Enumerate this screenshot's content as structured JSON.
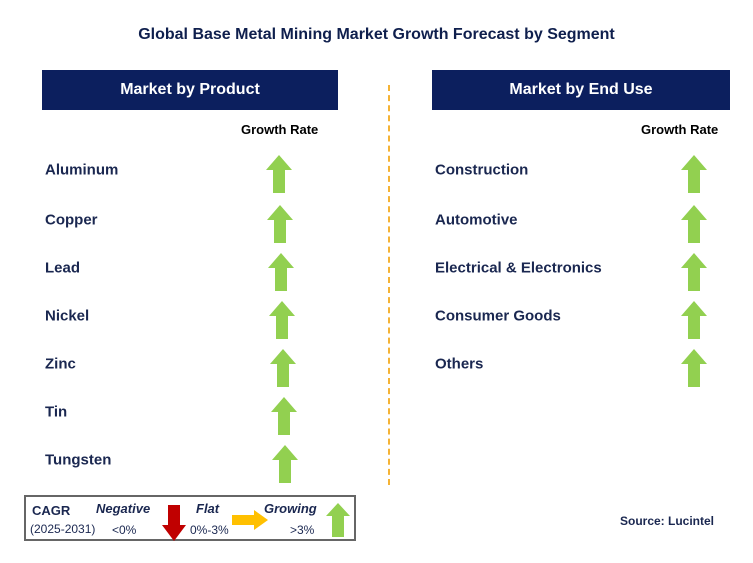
{
  "title": "Global Base Metal Mining Market Growth Forecast by Segment",
  "left": {
    "header": "Market by Product",
    "growth_label": "Growth Rate",
    "items": [
      {
        "label": "Aluminum",
        "trend": "growing"
      },
      {
        "label": "Copper",
        "trend": "growing"
      },
      {
        "label": "Lead",
        "trend": "growing"
      },
      {
        "label": "Nickel",
        "trend": "growing"
      },
      {
        "label": "Zinc",
        "trend": "growing"
      },
      {
        "label": "Tin",
        "trend": "growing"
      },
      {
        "label": "Tungsten",
        "trend": "growing"
      }
    ]
  },
  "right": {
    "header": "Market by End Use",
    "growth_label": "Growth Rate",
    "items": [
      {
        "label": "Construction",
        "trend": "growing"
      },
      {
        "label": "Automotive",
        "trend": "growing"
      },
      {
        "label": "Electrical & Electronics",
        "trend": "growing"
      },
      {
        "label": "Consumer Goods",
        "trend": "growing"
      },
      {
        "label": "Others",
        "trend": "growing"
      }
    ]
  },
  "legend": {
    "cagr": "CAGR",
    "period": "(2025-2031)",
    "negative": "Negative",
    "negative_range": "<0%",
    "flat": "Flat",
    "flat_range": "0%-3%",
    "growing": "Growing",
    "growing_range": ">3%"
  },
  "source": "Source: Lucintel",
  "colors": {
    "navy": "#0c1f5e",
    "growing": "#92d050",
    "negative": "#c00000",
    "flat": "#ffc000",
    "divider": "#f5b335"
  }
}
